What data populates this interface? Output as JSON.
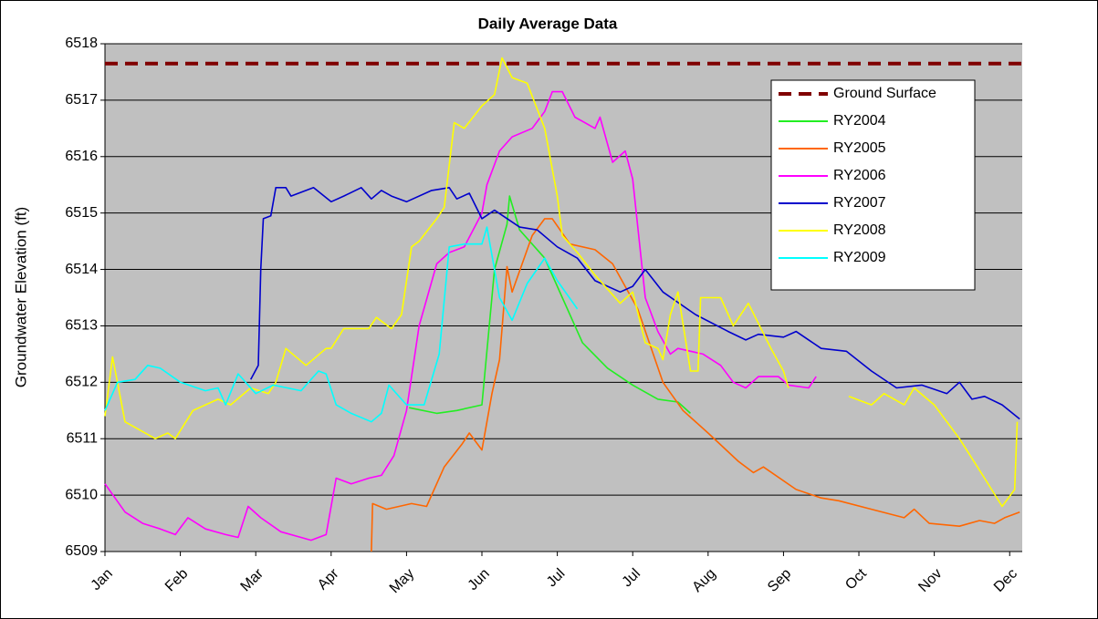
{
  "chart_data": {
    "type": "line",
    "title": "Daily Average Data",
    "y_label": "Groundwater Elevation (ft)",
    "xlim": [
      0,
      365
    ],
    "ylim": [
      6509,
      6518
    ],
    "xticks": [
      {
        "value": 0,
        "label": "Jan"
      },
      {
        "value": 30,
        "label": "Feb"
      },
      {
        "value": 60,
        "label": "Mar"
      },
      {
        "value": 90,
        "label": "Apr"
      },
      {
        "value": 120,
        "label": "May"
      },
      {
        "value": 150,
        "label": "Jun"
      },
      {
        "value": 180,
        "label": "Jul"
      },
      {
        "value": 210,
        "label": "Jul"
      },
      {
        "value": 240,
        "label": "Aug"
      },
      {
        "value": 270,
        "label": "Sep"
      },
      {
        "value": 300,
        "label": "Oct"
      },
      {
        "value": 330,
        "label": "Nov"
      },
      {
        "value": 360,
        "label": "Dec"
      }
    ],
    "yticks": [
      6509,
      6510,
      6511,
      6512,
      6513,
      6514,
      6515,
      6516,
      6517,
      6518
    ],
    "grid": true,
    "legend": "upper right",
    "series": [
      {
        "name": "Ground Surface",
        "color": "#800000",
        "dashed": true,
        "x": [
          0,
          365
        ],
        "values": [
          6517.65,
          6517.65
        ]
      },
      {
        "name": "RY2004",
        "color": "#22ee22",
        "x": [
          121,
          132,
          140,
          150,
          155,
          160,
          161,
          165,
          175,
          182,
          190,
          200,
          210,
          220,
          228,
          233
        ],
        "values": [
          6511.55,
          6511.45,
          6511.5,
          6511.6,
          6514.0,
          6514.8,
          6515.3,
          6514.7,
          6514.2,
          6513.5,
          6512.7,
          6512.25,
          6511.95,
          6511.7,
          6511.65,
          6511.45
        ]
      },
      {
        "name": "RY2005",
        "color": "#ff6600",
        "x": [
          106,
          106.5,
          112,
          122,
          128,
          135,
          142,
          145,
          150,
          154,
          157,
          160,
          162,
          166,
          170,
          175,
          178,
          185,
          195,
          202,
          212,
          222,
          230,
          240,
          252,
          258,
          262,
          275,
          285,
          292,
          305,
          318,
          322,
          328,
          340,
          348,
          354,
          358,
          364
        ],
        "values": [
          6509.0,
          6509.85,
          6509.75,
          6509.85,
          6509.8,
          6510.5,
          6510.9,
          6511.1,
          6510.8,
          6511.8,
          6512.4,
          6514.05,
          6513.6,
          6514.1,
          6514.6,
          6514.9,
          6514.9,
          6514.45,
          6514.35,
          6514.1,
          6513.3,
          6512.0,
          6511.5,
          6511.1,
          6510.6,
          6510.4,
          6510.5,
          6510.1,
          6509.95,
          6509.9,
          6509.75,
          6509.6,
          6509.75,
          6509.5,
          6509.45,
          6509.55,
          6509.5,
          6509.6,
          6509.7
        ]
      },
      {
        "name": "RY2006",
        "color": "#ff00ff",
        "x": [
          0,
          8,
          15,
          22,
          28,
          33,
          40,
          48,
          53,
          57,
          62,
          70,
          78,
          82,
          88,
          92,
          98,
          105,
          110,
          115,
          120,
          125,
          132,
          137,
          143,
          150,
          152,
          157,
          162,
          170,
          175,
          178,
          182,
          187,
          195,
          197,
          202,
          207,
          210,
          215,
          220,
          225,
          228,
          238,
          245,
          250,
          255,
          260,
          268,
          272,
          280,
          283
        ],
        "values": [
          6510.2,
          6509.7,
          6509.5,
          6509.4,
          6509.3,
          6509.6,
          6509.4,
          6509.3,
          6509.25,
          6509.8,
          6509.6,
          6509.35,
          6509.25,
          6509.2,
          6509.3,
          6510.3,
          6510.2,
          6510.3,
          6510.35,
          6510.7,
          6511.5,
          6513.0,
          6514.1,
          6514.3,
          6514.4,
          6515.0,
          6515.5,
          6516.1,
          6516.35,
          6516.5,
          6516.8,
          6517.15,
          6517.15,
          6516.7,
          6516.5,
          6516.7,
          6515.9,
          6516.1,
          6515.6,
          6513.5,
          6512.9,
          6512.5,
          6512.6,
          6512.5,
          6512.3,
          6512.0,
          6511.9,
          6512.1,
          6512.1,
          6511.95,
          6511.9,
          6512.1
        ]
      },
      {
        "name": "RY2007",
        "color": "#0000cc",
        "x": [
          58,
          61,
          62,
          63,
          66,
          68,
          72,
          74,
          83,
          90,
          95,
          102,
          106,
          110,
          114,
          120,
          130,
          137,
          140,
          145,
          150,
          155,
          165,
          172,
          180,
          188,
          195,
          205,
          210,
          215,
          222,
          235,
          248,
          255,
          260,
          270,
          275,
          285,
          295,
          305,
          315,
          325,
          335,
          340,
          345,
          350,
          357,
          364
        ],
        "values": [
          6512.05,
          6512.3,
          6514.0,
          6514.9,
          6514.95,
          6515.45,
          6515.45,
          6515.3,
          6515.45,
          6515.2,
          6515.3,
          6515.45,
          6515.25,
          6515.4,
          6515.3,
          6515.2,
          6515.4,
          6515.45,
          6515.25,
          6515.35,
          6514.9,
          6515.05,
          6514.75,
          6514.7,
          6514.4,
          6514.2,
          6513.8,
          6513.6,
          6513.7,
          6514.0,
          6513.6,
          6513.2,
          6512.9,
          6512.75,
          6512.85,
          6512.8,
          6512.9,
          6512.6,
          6512.55,
          6512.2,
          6511.9,
          6511.95,
          6511.8,
          6512.0,
          6511.7,
          6511.75,
          6511.6,
          6511.35
        ]
      },
      {
        "name": "RY2008",
        "color": "#ffff00",
        "x": [
          0,
          3,
          8,
          20,
          25,
          28,
          35,
          45,
          50,
          58,
          65,
          68,
          72,
          80,
          88,
          90,
          95,
          105,
          108,
          114,
          118,
          122,
          125,
          132,
          135,
          139,
          143,
          150,
          155,
          158,
          162,
          168,
          175,
          180,
          182,
          188,
          195,
          205,
          210,
          215,
          220,
          222,
          225,
          228,
          233,
          236,
          237,
          245,
          250,
          256,
          265,
          270,
          272,
          280,
          296,
          305,
          310,
          318,
          322,
          330,
          340,
          350,
          357,
          362,
          363
        ],
        "values": [
          6511.4,
          6512.45,
          6511.3,
          6511.0,
          6511.1,
          6511.0,
          6511.5,
          6511.7,
          6511.6,
          6511.9,
          6511.8,
          6512.0,
          6512.6,
          6512.3,
          6512.6,
          6512.6,
          6512.95,
          6512.95,
          6513.15,
          6512.95,
          6513.2,
          6514.4,
          6514.5,
          6514.9,
          6515.1,
          6516.6,
          6516.5,
          6516.9,
          6517.1,
          6517.75,
          6517.4,
          6517.3,
          6516.5,
          6515.3,
          6514.6,
          6514.3,
          6513.9,
          6513.4,
          6513.6,
          6512.7,
          6512.6,
          6512.4,
          6513.2,
          6513.6,
          6512.2,
          6512.2,
          6513.5,
          6513.5,
          6513.0,
          6513.4,
          6512.6,
          6512.2,
          6511.9,
          null,
          6511.75,
          6511.6,
          6511.8,
          6511.6,
          6511.9,
          6511.6,
          6511.0,
          6510.3,
          6509.8,
          6510.1,
          6511.3
        ]
      },
      {
        "name": "RY2009",
        "color": "#00ffff",
        "x": [
          0,
          5,
          12,
          17,
          22,
          30,
          40,
          45,
          48,
          53,
          60,
          67,
          78,
          85,
          88,
          92,
          98,
          106,
          110,
          113,
          120,
          127,
          133,
          137,
          143,
          150,
          152,
          157,
          162,
          168,
          175,
          180,
          188
        ],
        "values": [
          6511.5,
          6512.0,
          6512.05,
          6512.3,
          6512.25,
          6512.0,
          6511.85,
          6511.9,
          6511.6,
          6512.15,
          6511.8,
          6511.95,
          6511.85,
          6512.2,
          6512.15,
          6511.6,
          6511.45,
          6511.3,
          6511.45,
          6511.95,
          6511.6,
          6511.6,
          6512.5,
          6514.4,
          6514.45,
          6514.45,
          6514.75,
          6513.5,
          6513.1,
          6513.75,
          6514.2,
          6513.8,
          6513.3
        ]
      }
    ]
  }
}
